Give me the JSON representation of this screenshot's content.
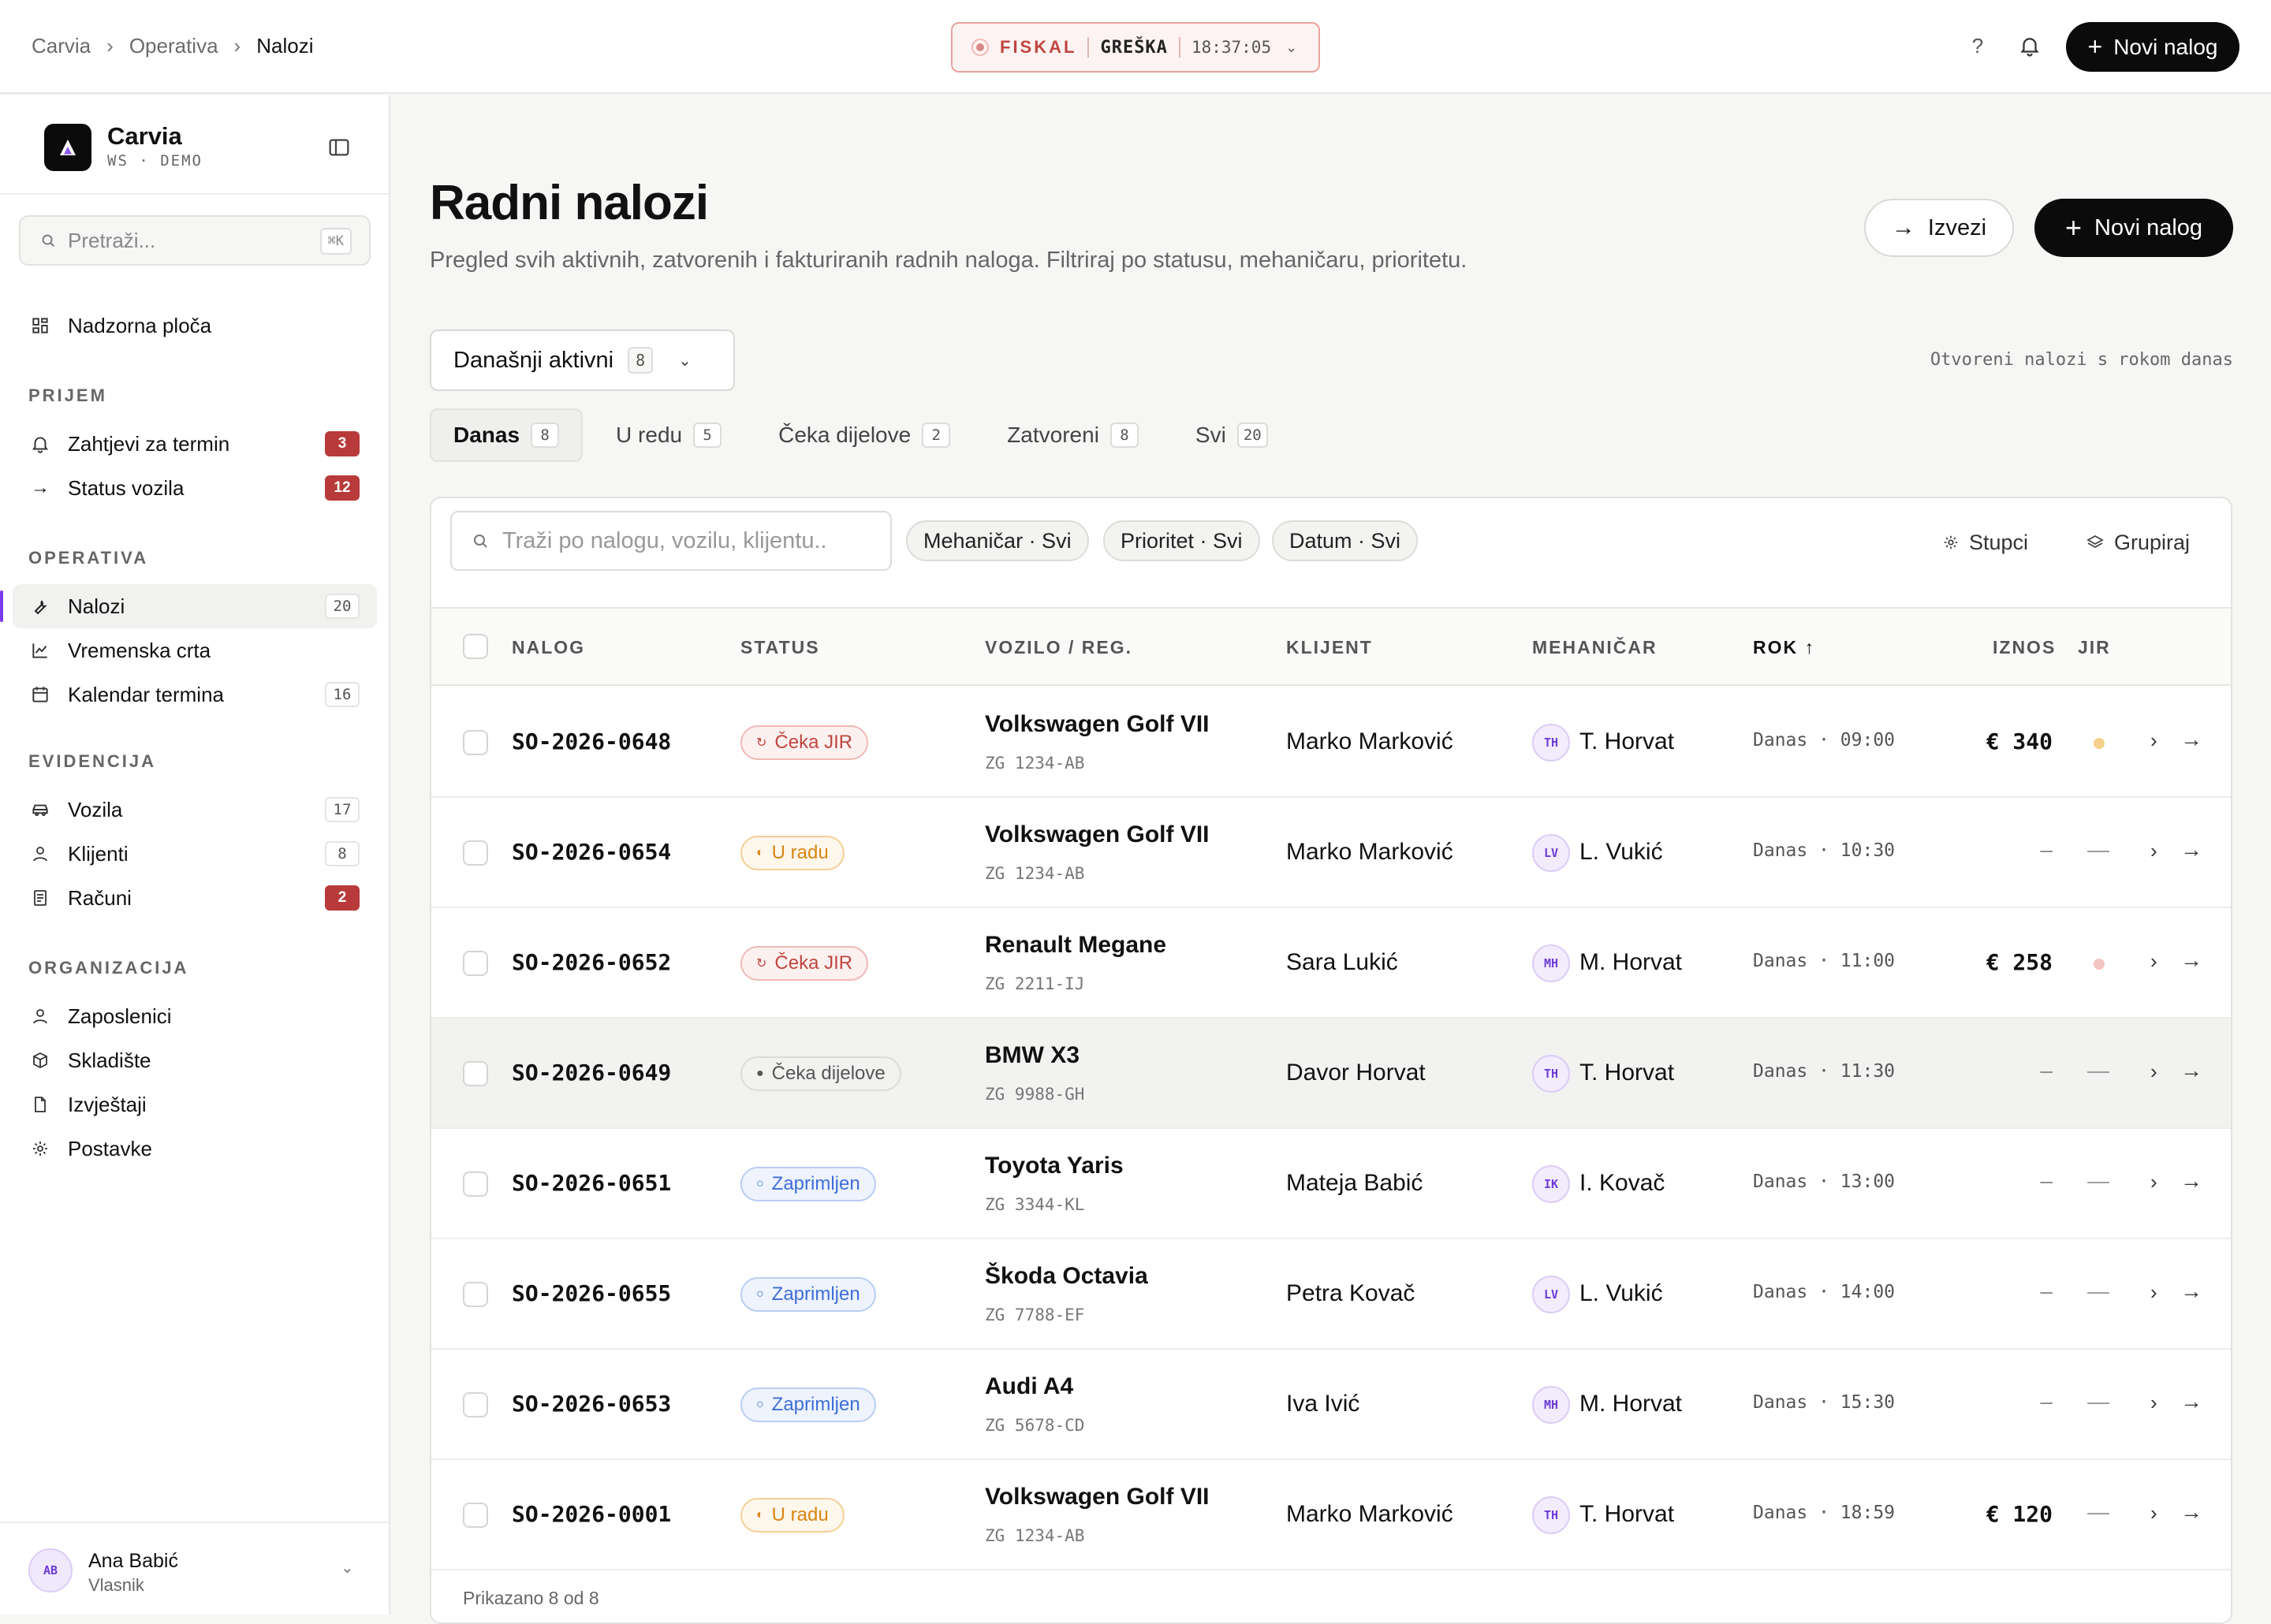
{
  "breadcrumb": [
    "Carvia",
    "Operativa",
    "Nalozi"
  ],
  "fiscal": {
    "label": "FISKAL",
    "state": "GREŠKA",
    "time": "18:37:05"
  },
  "top": {
    "help": "?",
    "new_label": "Novi nalog"
  },
  "brand": {
    "name": "Carvia",
    "sub": "WS · DEMO"
  },
  "search": {
    "placeholder": "Pretraži...",
    "kbd": "⌘K"
  },
  "nav": {
    "dashboard": "Nadzorna ploča",
    "sec_prijem": "PRIJEM",
    "zahtjevi": {
      "label": "Zahtjevi za termin",
      "count": "3"
    },
    "status": {
      "label": "Status vozila",
      "count": "12"
    },
    "sec_operativa": "OPERATIVA",
    "nalozi": {
      "label": "Nalozi",
      "count": "20"
    },
    "vremenska": "Vremenska crta",
    "kalendar": {
      "label": "Kalendar termina",
      "count": "16"
    },
    "sec_evidencija": "EVIDENCIJA",
    "vozila": {
      "label": "Vozila",
      "count": "17"
    },
    "klijenti": {
      "label": "Klijenti",
      "count": "8"
    },
    "racuni": {
      "label": "Računi",
      "count": "2"
    },
    "sec_org": "ORGANIZACIJA",
    "zaposlenici": "Zaposlenici",
    "skladiste": "Skladište",
    "izvjestaji": "Izvještaji",
    "postavke": "Postavke"
  },
  "user": {
    "initials": "AB",
    "name": "Ana Babić",
    "role": "Vlasnik"
  },
  "page": {
    "title": "Radni nalozi",
    "subtitle": "Pregled svih aktivnih, zatvorenih i fakturiranih radnih naloga. Filtriraj po statusu, mehaničaru, prioritetu.",
    "export": "Izvezi",
    "new": "Novi nalog"
  },
  "view": {
    "label": "Današnji aktivni",
    "count": "8",
    "note": "Otvoreni nalozi s rokom danas"
  },
  "tabs": [
    {
      "label": "Danas",
      "count": "8"
    },
    {
      "label": "U redu",
      "count": "5"
    },
    {
      "label": "Čeka dijelove",
      "count": "2"
    },
    {
      "label": "Zatvoreni",
      "count": "8"
    },
    {
      "label": "Svi",
      "count": "20"
    }
  ],
  "table": {
    "search_placeholder": "Traži po nalogu, vozilu, klijentu..",
    "filters": [
      "Mehaničar · Svi",
      "Prioritet · Svi",
      "Datum · Svi"
    ],
    "columns_btn": "Stupci",
    "group_btn": "Grupiraj",
    "headers": {
      "nalog": "NALOG",
      "status": "STATUS",
      "vozilo": "VOZILO / REG.",
      "klijent": "KLIJENT",
      "mehanicar": "MEHANIČAR",
      "rok": "ROK ↑",
      "iznos": "IZNOS",
      "jir": "JIR"
    },
    "rows": [
      {
        "id": "SO-2026-0648",
        "status": "Čeka JIR",
        "vehicle": "Volkswagen Golf VII",
        "reg": "ZG 1234-AB",
        "client": "Marko Marković",
        "mech_initials": "TH",
        "mech": "T. Horvat",
        "due": "Danas · 09:00",
        "amount": "€ 340",
        "jir": "dot",
        "jir_color": "#f5d08a"
      },
      {
        "id": "SO-2026-0654",
        "status": "U radu",
        "vehicle": "Volkswagen Golf VII",
        "reg": "ZG 1234-AB",
        "client": "Marko Marković",
        "mech_initials": "LV",
        "mech": "L. Vukić",
        "due": "Danas · 10:30",
        "amount": "–",
        "jir": "—"
      },
      {
        "id": "SO-2026-0652",
        "status": "Čeka JIR",
        "vehicle": "Renault Megane",
        "reg": "ZG 2211-IJ",
        "client": "Sara Lukić",
        "mech_initials": "MH",
        "mech": "M. Horvat",
        "due": "Danas · 11:00",
        "amount": "€ 258",
        "jir": "dot",
        "jir_color": "#f3c4c2"
      },
      {
        "id": "SO-2026-0649",
        "status": "Čeka dijelove",
        "vehicle": "BMW X3",
        "reg": "ZG 9988-GH",
        "client": "Davor Horvat",
        "mech_initials": "TH",
        "mech": "T. Horvat",
        "due": "Danas · 11:30",
        "amount": "–",
        "jir": "—"
      },
      {
        "id": "SO-2026-0651",
        "status": "Zaprimljen",
        "vehicle": "Toyota Yaris",
        "reg": "ZG 3344-KL",
        "client": "Mateja Babić",
        "mech_initials": "IK",
        "mech": "I. Kovač",
        "due": "Danas · 13:00",
        "amount": "–",
        "jir": "—"
      },
      {
        "id": "SO-2026-0655",
        "status": "Zaprimljen",
        "vehicle": "Škoda Octavia",
        "reg": "ZG 7788-EF",
        "client": "Petra Kovač",
        "mech_initials": "LV",
        "mech": "L. Vukić",
        "due": "Danas · 14:00",
        "amount": "–",
        "jir": "—"
      },
      {
        "id": "SO-2026-0653",
        "status": "Zaprimljen",
        "vehicle": "Audi A4",
        "reg": "ZG 5678-CD",
        "client": "Iva Ivić",
        "mech_initials": "MH",
        "mech": "M. Horvat",
        "due": "Danas · 15:30",
        "amount": "–",
        "jir": "—"
      },
      {
        "id": "SO-2026-0001",
        "status": "U radu",
        "vehicle": "Volkswagen Golf VII",
        "reg": "ZG 1234-AB",
        "client": "Marko Marković",
        "mech_initials": "TH",
        "mech": "T. Horvat",
        "due": "Danas · 18:59",
        "amount": "€ 120",
        "jir": "—"
      }
    ],
    "footer": "Prikazano 8 od 8"
  }
}
